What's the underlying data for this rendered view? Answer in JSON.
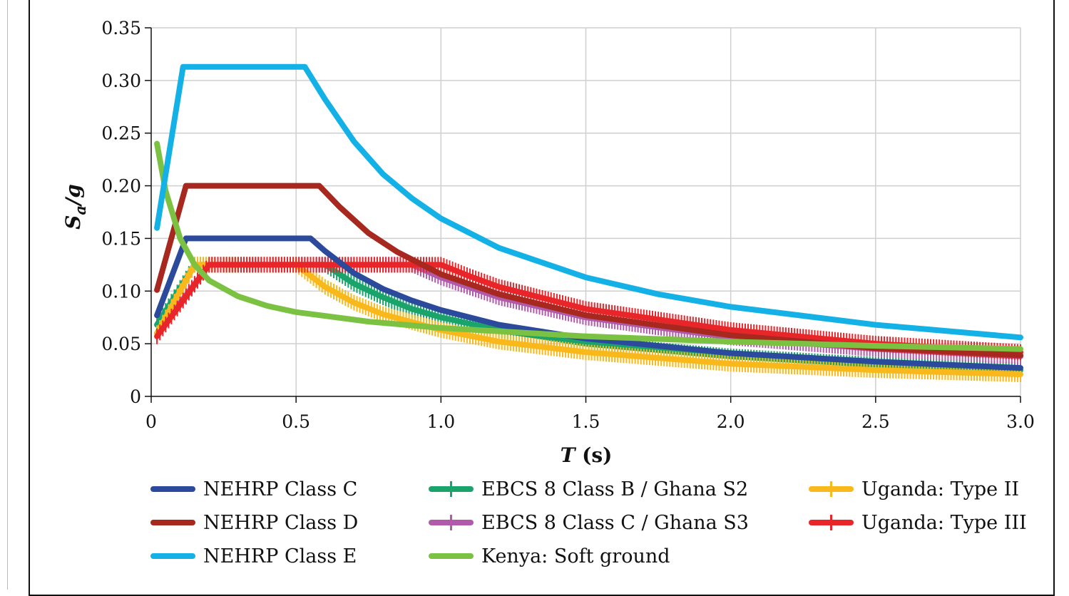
{
  "chart_data": {
    "type": "line",
    "xlabel": {
      "var": "T",
      "unit": "(s)"
    },
    "ylabel": {
      "main": "S",
      "sub": "a",
      "rest": "/g"
    },
    "xlim": [
      0,
      3
    ],
    "ylim": [
      0,
      0.35
    ],
    "xticks": [
      {
        "value": 0,
        "label": "0"
      },
      {
        "value": 0.5,
        "label": "0.5"
      },
      {
        "value": 1.0,
        "label": "1.0"
      },
      {
        "value": 1.5,
        "label": "1.5"
      },
      {
        "value": 2.0,
        "label": "2.0"
      },
      {
        "value": 2.5,
        "label": "2.5"
      },
      {
        "value": 3.0,
        "label": "3.0"
      }
    ],
    "yticks": [
      {
        "value": 0,
        "label": "0"
      },
      {
        "value": 0.05,
        "label": "0.05"
      },
      {
        "value": 0.1,
        "label": "0.10"
      },
      {
        "value": 0.15,
        "label": "0.15"
      },
      {
        "value": 0.2,
        "label": "0.20"
      },
      {
        "value": 0.25,
        "label": "0.25"
      },
      {
        "value": 0.3,
        "label": "0.30"
      },
      {
        "value": 0.35,
        "label": "0.35"
      }
    ],
    "grid": true,
    "legend": "bottom",
    "series": [
      {
        "name": "NEHRP Class C",
        "color": "#2b4a9b",
        "marker": "none",
        "points": [
          [
            0.02,
            0.077
          ],
          [
            0.12,
            0.15
          ],
          [
            0.5,
            0.15
          ],
          [
            0.55,
            0.15
          ],
          [
            0.6,
            0.138
          ],
          [
            0.7,
            0.117
          ],
          [
            0.8,
            0.102
          ],
          [
            0.9,
            0.091
          ],
          [
            1.0,
            0.082
          ],
          [
            1.2,
            0.068
          ],
          [
            1.5,
            0.055
          ],
          [
            2.0,
            0.041
          ],
          [
            2.5,
            0.033
          ],
          [
            3.0,
            0.027
          ]
        ]
      },
      {
        "name": "NEHRP Class D",
        "color": "#a6281e",
        "marker": "none",
        "points": [
          [
            0.02,
            0.101
          ],
          [
            0.12,
            0.2
          ],
          [
            0.55,
            0.2
          ],
          [
            0.58,
            0.2
          ],
          [
            0.65,
            0.18
          ],
          [
            0.75,
            0.155
          ],
          [
            0.85,
            0.137
          ],
          [
            1.0,
            0.116
          ],
          [
            1.2,
            0.097
          ],
          [
            1.5,
            0.077
          ],
          [
            2.0,
            0.058
          ],
          [
            2.5,
            0.046
          ],
          [
            3.0,
            0.039
          ]
        ]
      },
      {
        "name": "NEHRP Class E",
        "color": "#14b1e7",
        "marker": "none",
        "points": [
          [
            0.02,
            0.16
          ],
          [
            0.11,
            0.313
          ],
          [
            0.53,
            0.313
          ],
          [
            0.6,
            0.282
          ],
          [
            0.7,
            0.242
          ],
          [
            0.8,
            0.211
          ],
          [
            0.9,
            0.188
          ],
          [
            1.0,
            0.169
          ],
          [
            1.2,
            0.141
          ],
          [
            1.5,
            0.113
          ],
          [
            1.75,
            0.097
          ],
          [
            2.0,
            0.085
          ],
          [
            2.5,
            0.068
          ],
          [
            3.0,
            0.056
          ]
        ]
      },
      {
        "name": "EBCS 8 Class B / Ghana S2",
        "color": "#1aa36a",
        "marker": "plus",
        "points": [
          [
            0.02,
            0.068
          ],
          [
            0.15,
            0.125
          ],
          [
            0.6,
            0.125
          ],
          [
            0.7,
            0.107
          ],
          [
            0.8,
            0.094
          ],
          [
            0.9,
            0.083
          ],
          [
            1.0,
            0.075
          ],
          [
            1.2,
            0.063
          ],
          [
            1.5,
            0.05
          ],
          [
            2.0,
            0.038
          ],
          [
            2.5,
            0.03
          ],
          [
            3.0,
            0.025
          ]
        ]
      },
      {
        "name": "EBCS 8 Class C / Ghana S3",
        "color": "#b15aa9",
        "marker": "plus",
        "points": [
          [
            0.02,
            0.06
          ],
          [
            0.2,
            0.125
          ],
          [
            0.9,
            0.125
          ],
          [
            1.0,
            0.113
          ],
          [
            1.2,
            0.094
          ],
          [
            1.5,
            0.075
          ],
          [
            2.0,
            0.056
          ],
          [
            2.5,
            0.045
          ],
          [
            3.0,
            0.038
          ]
        ]
      },
      {
        "name": "Kenya: Soft ground",
        "color": "#7cc242",
        "marker": "none",
        "points": [
          [
            0.02,
            0.24
          ],
          [
            0.05,
            0.195
          ],
          [
            0.1,
            0.15
          ],
          [
            0.15,
            0.125
          ],
          [
            0.2,
            0.11
          ],
          [
            0.3,
            0.095
          ],
          [
            0.4,
            0.086
          ],
          [
            0.5,
            0.08
          ],
          [
            0.75,
            0.071
          ],
          [
            1.0,
            0.065
          ],
          [
            1.5,
            0.057
          ],
          [
            2.0,
            0.052
          ],
          [
            2.5,
            0.048
          ],
          [
            3.0,
            0.045
          ]
        ]
      },
      {
        "name": "Uganda: Type II",
        "color": "#f9b81b",
        "marker": "plus",
        "points": [
          [
            0.02,
            0.06
          ],
          [
            0.15,
            0.125
          ],
          [
            0.5,
            0.125
          ],
          [
            0.6,
            0.104
          ],
          [
            0.7,
            0.089
          ],
          [
            0.8,
            0.078
          ],
          [
            1.0,
            0.063
          ],
          [
            1.2,
            0.052
          ],
          [
            1.5,
            0.042
          ],
          [
            2.0,
            0.031
          ],
          [
            2.5,
            0.025
          ],
          [
            3.0,
            0.021
          ]
        ]
      },
      {
        "name": "Uganda: Type III",
        "color": "#e8262a",
        "marker": "plus",
        "points": [
          [
            0.02,
            0.057
          ],
          [
            0.2,
            0.125
          ],
          [
            1.0,
            0.125
          ],
          [
            1.1,
            0.114
          ],
          [
            1.2,
            0.104
          ],
          [
            1.5,
            0.083
          ],
          [
            2.0,
            0.063
          ],
          [
            2.5,
            0.05
          ],
          [
            3.0,
            0.042
          ]
        ]
      }
    ]
  }
}
